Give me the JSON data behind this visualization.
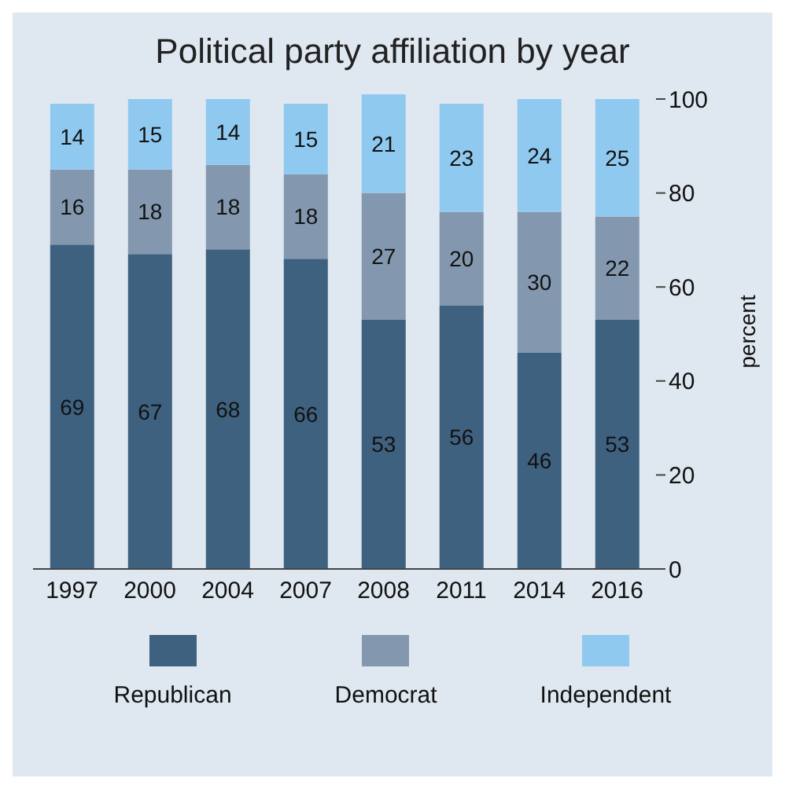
{
  "chart_data": {
    "type": "bar",
    "title": "Political party affiliation by year",
    "ylabel": "percent",
    "categories": [
      "1997",
      "2000",
      "2004",
      "2007",
      "2008",
      "2011",
      "2014",
      "2016"
    ],
    "stacked": true,
    "series": [
      {
        "name": "Republican",
        "color": "#3e617f",
        "values": [
          69,
          67,
          68,
          66,
          53,
          56,
          46,
          53
        ]
      },
      {
        "name": "Democrat",
        "color": "#8398ae",
        "values": [
          16,
          18,
          18,
          18,
          27,
          20,
          30,
          22
        ]
      },
      {
        "name": "Independent",
        "color": "#8fc9ef",
        "values": [
          14,
          15,
          14,
          15,
          21,
          23,
          24,
          25
        ]
      }
    ],
    "ylim": [
      0,
      101
    ],
    "yticks": [
      0,
      20,
      40,
      60,
      80,
      100
    ],
    "data_labels": true,
    "legend": "bottom",
    "grid": false
  }
}
